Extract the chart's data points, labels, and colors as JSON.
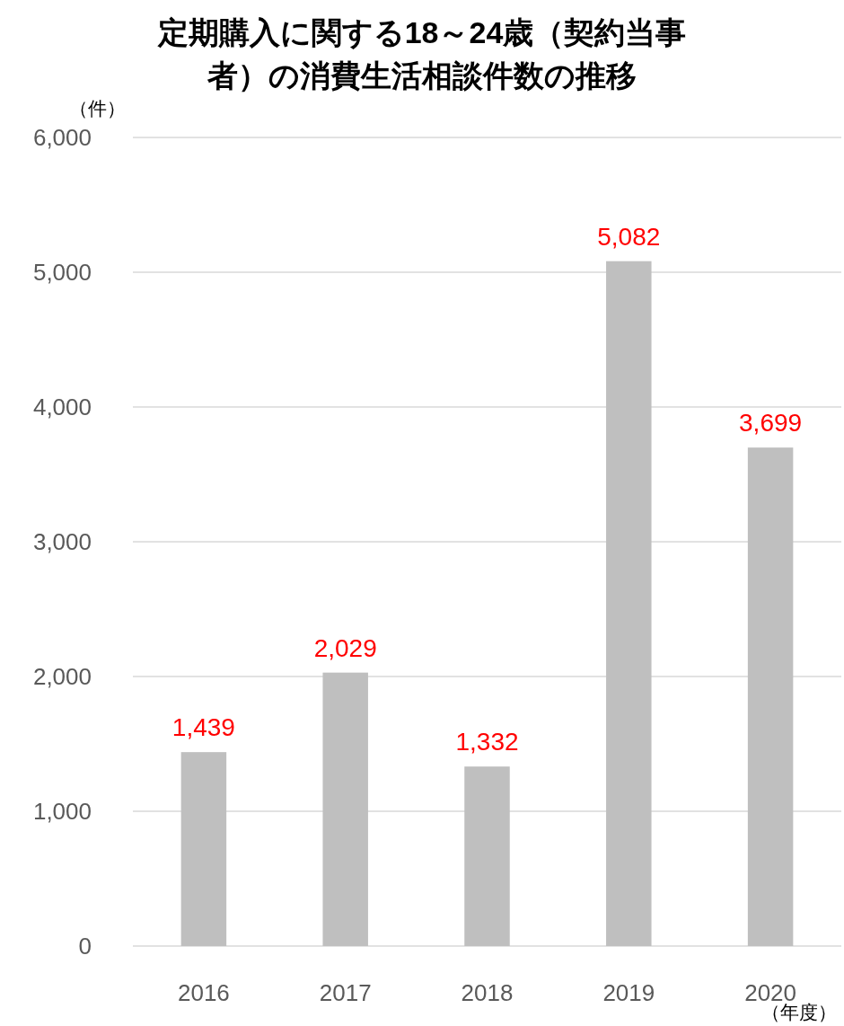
{
  "chart_data": {
    "type": "bar",
    "title": "定期購入に関する18～24歳（契約当事者）の消費生活相談件数の推移",
    "ylabel": "（件）",
    "xlabel": "（年度）",
    "categories": [
      "2016",
      "2017",
      "2018",
      "2019",
      "2020"
    ],
    "values": [
      1439,
      2029,
      1332,
      5082,
      3699
    ],
    "color": "#bfbfbf",
    "ylim": [
      0,
      6000
    ],
    "yticks": [
      0,
      {
        "value": 1000,
        "label": "1,000"
      },
      {
        "value": 2000,
        "label": "2,000"
      },
      {
        "value": 3000,
        "label": "3,000"
      },
      {
        "value": 4000,
        "label": "4,000"
      },
      {
        "value": 5000,
        "label": "5,000"
      },
      {
        "value": 6000,
        "label": "6,000"
      }
    ],
    "value_labels": [
      "1,439",
      "2,029",
      "1,332",
      "5,082",
      "3,699"
    ],
    "grid": "y"
  }
}
